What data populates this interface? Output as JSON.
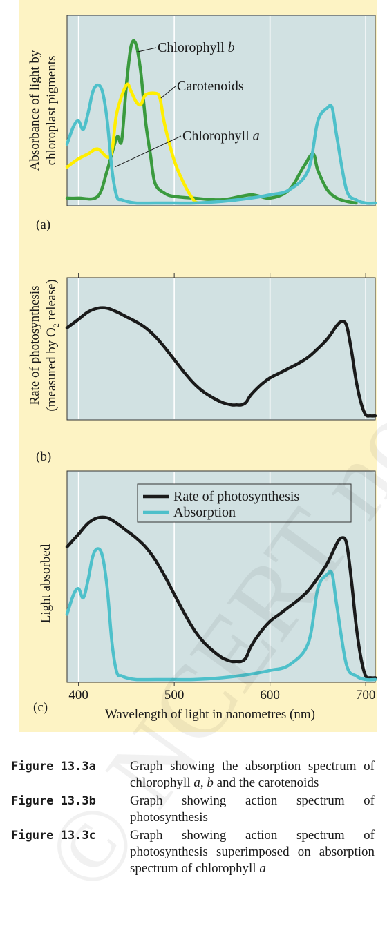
{
  "panels": {
    "a": {
      "tag": "(a)",
      "ylabel_line1": "Absorbance of light by",
      "ylabel_line2": "chloroplast pigments"
    },
    "b": {
      "tag": "(b)",
      "ylabel_line1": "Rate of photosynthesis",
      "ylabel_line2": "(measured by O",
      "ylabel_sub": "2",
      "ylabel_line2_end": " release)"
    },
    "c": {
      "tag": "(c)",
      "ylabel": "Light absorbed",
      "xlabel": "Wavelength of light in nanometres (nm)"
    }
  },
  "watermark": "© NCERT not to be republished",
  "chart_data": [
    {
      "type": "line",
      "panel": "a",
      "xlim": [
        388,
        710
      ],
      "x_ticks": [
        400,
        500,
        600,
        700
      ],
      "grid": true,
      "series": [
        {
          "name": "Chlorophyll b",
          "label_html": "Chlorophyll <i>b</i>",
          "color": "#3a9a3e",
          "x": [
            388,
            400,
            420,
            430,
            440,
            445,
            450,
            455,
            460,
            465,
            470,
            475,
            480,
            490,
            500,
            520,
            550,
            580,
            600,
            620,
            635,
            645,
            650,
            660,
            670,
            680,
            690
          ],
          "y": [
            3,
            3,
            4,
            20,
            40,
            38,
            72,
            96,
            97,
            80,
            50,
            30,
            12,
            6,
            4,
            3,
            2,
            5,
            3,
            8,
            22,
            30,
            20,
            8,
            3,
            1,
            0
          ]
        },
        {
          "name": "Carotenoids",
          "color": "#ffee00",
          "x": [
            388,
            400,
            410,
            420,
            430,
            435,
            440,
            450,
            455,
            460,
            465,
            470,
            480,
            485,
            490,
            500,
            510,
            520,
            525
          ],
          "y": [
            22,
            27,
            30,
            33,
            28,
            32,
            55,
            72,
            68,
            62,
            60,
            66,
            67,
            64,
            48,
            26,
            12,
            2,
            0
          ]
        },
        {
          "name": "Chlorophyll a",
          "label_html": "Chlorophyll <i>a</i>",
          "color": "#4ec0ca",
          "x": [
            388,
            395,
            400,
            405,
            410,
            415,
            420,
            425,
            430,
            435,
            440,
            445,
            450,
            460,
            480,
            500,
            520,
            550,
            580,
            600,
            620,
            640,
            650,
            660,
            665,
            670,
            680,
            690,
            700,
            710
          ],
          "y": [
            36,
            47,
            50,
            45,
            55,
            68,
            72,
            68,
            50,
            20,
            4,
            2,
            1,
            0,
            0,
            0,
            0,
            1,
            3,
            5,
            8,
            20,
            50,
            58,
            58,
            40,
            8,
            2,
            0,
            0
          ]
        }
      ],
      "annotations": [
        {
          "text": "Chlorophyll b",
          "target_x": 460,
          "target_y": 92
        },
        {
          "text": "Carotenoids",
          "target_x": 486,
          "target_y": 64
        },
        {
          "text": "Chlorophyll a",
          "target_x": 438,
          "target_y": 22
        }
      ]
    },
    {
      "type": "line",
      "panel": "b",
      "xlim": [
        388,
        710
      ],
      "x_ticks": [
        400,
        500,
        600,
        700
      ],
      "grid": true,
      "series": [
        {
          "name": "Rate of photosynthesis",
          "color": "#1a1a1a",
          "x": [
            388,
            400,
            410,
            420,
            430,
            440,
            450,
            460,
            470,
            480,
            490,
            500,
            510,
            520,
            530,
            540,
            550,
            560,
            565,
            570,
            575,
            580,
            590,
            600,
            610,
            620,
            630,
            640,
            650,
            660,
            670,
            675,
            680,
            685,
            690,
            695,
            700,
            705,
            710
          ],
          "y": [
            73,
            80,
            86,
            89,
            89,
            86,
            82,
            78,
            73,
            66,
            57,
            47,
            37,
            28,
            21,
            16,
            12,
            10,
            10,
            10,
            12,
            18,
            26,
            32,
            36,
            40,
            44,
            49,
            56,
            64,
            75,
            78,
            75,
            55,
            30,
            12,
            2,
            1,
            1
          ]
        }
      ]
    },
    {
      "type": "line",
      "panel": "c",
      "xlim": [
        388,
        710
      ],
      "x_ticks": [
        400,
        500,
        600,
        700
      ],
      "x_tick_labels": [
        "400",
        "500",
        "600",
        "700"
      ],
      "grid": true,
      "legend": "top-right",
      "series": [
        {
          "name": "Rate of photosynthesis",
          "color": "#1a1a1a",
          "x": [
            388,
            400,
            410,
            420,
            430,
            440,
            450,
            460,
            470,
            480,
            490,
            500,
            510,
            520,
            530,
            540,
            550,
            560,
            565,
            570,
            575,
            580,
            590,
            600,
            610,
            620,
            630,
            640,
            650,
            660,
            670,
            675,
            680,
            685,
            690,
            695,
            700,
            705,
            710
          ],
          "y": [
            73,
            80,
            86,
            89,
            89,
            86,
            82,
            78,
            73,
            66,
            57,
            47,
            37,
            28,
            21,
            16,
            12,
            10,
            10,
            10,
            12,
            18,
            26,
            32,
            36,
            40,
            44,
            49,
            56,
            64,
            75,
            78,
            75,
            55,
            30,
            12,
            2,
            1,
            1
          ]
        },
        {
          "name": "Absorption",
          "color": "#4ec0ca",
          "x": [
            388,
            395,
            400,
            405,
            410,
            415,
            420,
            425,
            430,
            435,
            440,
            445,
            450,
            460,
            480,
            500,
            520,
            550,
            580,
            600,
            620,
            640,
            650,
            660,
            665,
            670,
            680,
            690,
            700,
            710
          ],
          "y": [
            36,
            47,
            50,
            45,
            55,
            68,
            72,
            68,
            50,
            20,
            4,
            2,
            1,
            0,
            0,
            0,
            0,
            1,
            3,
            5,
            8,
            20,
            50,
            58,
            58,
            40,
            8,
            2,
            0,
            0
          ]
        }
      ]
    }
  ],
  "captions": [
    {
      "label": "Figure 13.3a",
      "text_html": "Graph showing the absorption spectrum of chlorophyll <i>a</i>, <i>b</i> and the carotenoids"
    },
    {
      "label": "Figure 13.3b",
      "text_html": "Graph showing action spectrum of photosynthesis"
    },
    {
      "label": "Figure 13.3c",
      "text_html": "Graph showing action spectrum of photosynthesis superimposed on absorption spectrum of chlorophyll <i>a</i>"
    }
  ]
}
